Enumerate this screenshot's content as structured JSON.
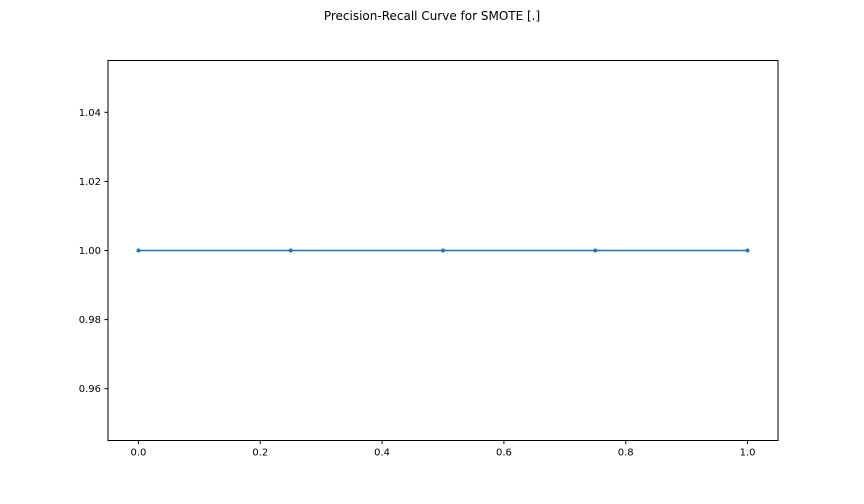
{
  "chart_data": {
    "type": "line",
    "title": "Precision-Recall Curve for SMOTE [.]",
    "xlabel": "",
    "ylabel": "",
    "xlim": [
      -0.05,
      1.05
    ],
    "ylim": [
      0.945,
      1.055
    ],
    "x_ticks": [
      0.0,
      0.2,
      0.4,
      0.6,
      0.8,
      1.0
    ],
    "x_tick_labels": [
      "0.0",
      "0.2",
      "0.4",
      "0.6",
      "0.8",
      "1.0"
    ],
    "y_ticks": [
      0.96,
      0.98,
      1.0,
      1.02,
      1.04
    ],
    "y_tick_labels": [
      "0.96",
      "0.98",
      "1.00",
      "1.02",
      "1.04"
    ],
    "grid": false,
    "legend": "none",
    "series": [
      {
        "x": [
          0.0,
          0.25,
          0.5,
          0.75,
          1.0
        ],
        "y": [
          1.0,
          1.0,
          1.0,
          1.0,
          1.0
        ],
        "color": "#1f77b4",
        "marker": "point"
      }
    ]
  }
}
